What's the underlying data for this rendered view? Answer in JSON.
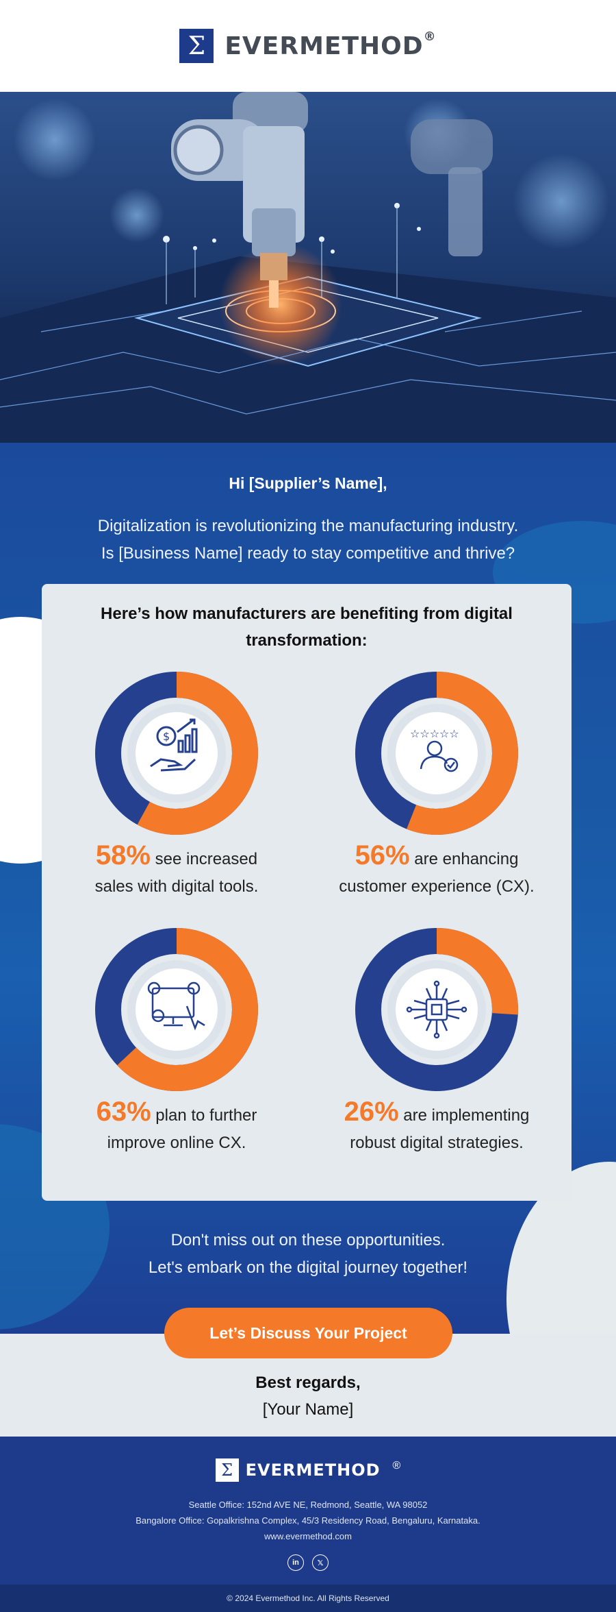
{
  "brand": {
    "mark": "Σ",
    "name": "EVERMETHOD",
    "reg": "®"
  },
  "colors": {
    "primary": "#1e3a8a",
    "accent": "#f47a2a",
    "card": "#e4eaed"
  },
  "greeting": "Hi [Supplier’s Name],",
  "intro": {
    "line1": "Digitalization is revolutionizing the manufacturing industry.",
    "line2": "Is [Business Name] ready to stay competitive and thrive?"
  },
  "card": {
    "title_line1": "Here’s how manufacturers are benefiting from digital",
    "title_line2": "transformation:",
    "stats": [
      {
        "percent": "58%",
        "fraction": 0.58,
        "text1": " see increased",
        "text2": "sales with digital tools.",
        "icon": "money-growth-hand-icon"
      },
      {
        "percent": "56%",
        "fraction": 0.56,
        "text1": " are enhancing",
        "text2": "customer experience (CX).",
        "icon": "customer-rating-icon"
      },
      {
        "percent": "63%",
        "fraction": 0.63,
        "text1": " plan to further",
        "text2": "improve online CX.",
        "icon": "online-review-icon"
      },
      {
        "percent": "26%",
        "fraction": 0.26,
        "text1": " are implementing",
        "text2": "robust digital strategies.",
        "icon": "digital-chip-icon"
      }
    ]
  },
  "closing": {
    "line1": "Don't miss out on these opportunities.",
    "line2": "Let's embark on the digital journey together!"
  },
  "cta_label": "Let’s Discuss Your Project",
  "signoff": {
    "regards": "Best regards,",
    "name": "[Your Name]"
  },
  "footer": {
    "seattle": "Seattle Office: 152nd AVE NE, Redmond, Seattle, WA 98052",
    "bangalore": "Bangalore Office: Gopalkrishna Complex, 45/3 Residency Road, Bengaluru, Karnataka.",
    "website": "www.evermethod.com",
    "social": {
      "linkedin": "in",
      "x": "𝕏"
    },
    "copyright": "© 2024 Evermethod Inc. All Rights Reserved"
  }
}
